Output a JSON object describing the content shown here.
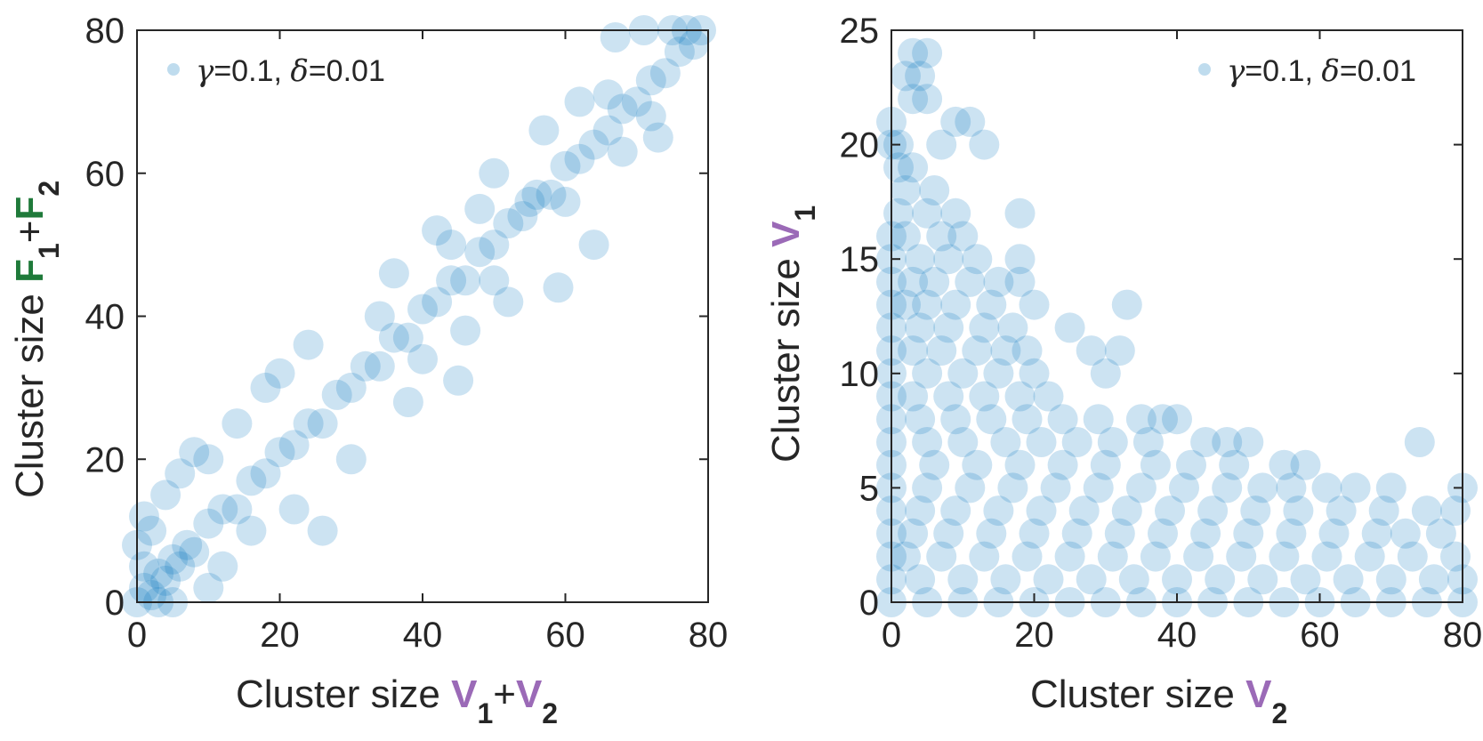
{
  "colors": {
    "marker": "#0072bd",
    "axis": "#262626",
    "v_symbol": "#9b6ab7",
    "f_symbol": "#1f7a3a"
  },
  "chart_data": [
    {
      "type": "scatter",
      "xlabel": {
        "prefix": "Cluster size ",
        "sym1": "V",
        "sub1": "1",
        "plus": "+",
        "sym2": "V",
        "sub2": "2"
      },
      "ylabel": {
        "prefix": "Cluster size ",
        "sym1": "F",
        "sub1": "1",
        "plus": "+",
        "sym2": "F",
        "sub2": "2"
      },
      "xlim": [
        0,
        80
      ],
      "ylim": [
        0,
        80
      ],
      "xticks": [
        0,
        20,
        40,
        60,
        80
      ],
      "yticks": [
        0,
        20,
        40,
        60,
        80
      ],
      "legend": {
        "position": "top-left",
        "gamma_sym": "γ",
        "gamma_val": "=0.1, ",
        "delta_sym": "δ",
        "delta_val": "=0.01"
      },
      "grid": false,
      "marker_alpha": 0.2,
      "series": [
        {
          "name": "γ=0.1, δ=0.01",
          "points": [
            [
              0,
              0
            ],
            [
              1,
              2
            ],
            [
              2,
              1
            ],
            [
              3,
              4
            ],
            [
              4,
              3
            ],
            [
              5,
              6
            ],
            [
              6,
              5
            ],
            [
              7,
              8
            ],
            [
              8,
              7
            ],
            [
              10,
              11
            ],
            [
              12,
              13
            ],
            [
              14,
              13
            ],
            [
              16,
              17
            ],
            [
              18,
              18
            ],
            [
              20,
              21
            ],
            [
              22,
              22
            ],
            [
              24,
              25
            ],
            [
              26,
              25
            ],
            [
              28,
              29
            ],
            [
              30,
              30
            ],
            [
              32,
              33
            ],
            [
              34,
              33
            ],
            [
              36,
              37
            ],
            [
              38,
              37
            ],
            [
              40,
              41
            ],
            [
              42,
              42
            ],
            [
              44,
              45
            ],
            [
              46,
              45
            ],
            [
              48,
              49
            ],
            [
              50,
              50
            ],
            [
              52,
              53
            ],
            [
              54,
              54
            ],
            [
              56,
              57
            ],
            [
              58,
              57
            ],
            [
              60,
              61
            ],
            [
              62,
              62
            ],
            [
              64,
              64
            ],
            [
              66,
              66
            ],
            [
              68,
              69
            ],
            [
              70,
              70
            ],
            [
              72,
              73
            ],
            [
              74,
              74
            ],
            [
              76,
              77
            ],
            [
              78,
              78
            ],
            [
              77,
              80
            ],
            [
              75,
              80
            ],
            [
              79,
              80
            ],
            [
              71,
              80
            ],
            [
              4,
              15
            ],
            [
              6,
              18
            ],
            [
              8,
              21
            ],
            [
              5,
              0
            ],
            [
              10,
              2
            ],
            [
              12,
              5
            ],
            [
              16,
              10
            ],
            [
              20,
              32
            ],
            [
              24,
              36
            ],
            [
              26,
              10
            ],
            [
              36,
              46
            ],
            [
              45,
              31
            ],
            [
              50,
              60
            ],
            [
              52,
              42
            ],
            [
              55,
              56
            ],
            [
              59,
              44
            ],
            [
              57,
              66
            ],
            [
              64,
              50
            ],
            [
              67,
              79
            ],
            [
              66,
              71
            ],
            [
              73,
              65
            ],
            [
              10,
              20
            ],
            [
              14,
              25
            ],
            [
              18,
              30
            ],
            [
              22,
              13
            ],
            [
              30,
              20
            ],
            [
              34,
              40
            ],
            [
              38,
              28
            ],
            [
              42,
              52
            ],
            [
              46,
              38
            ],
            [
              2,
              10
            ],
            [
              1,
              5
            ],
            [
              3,
              0
            ],
            [
              0,
              8
            ],
            [
              1,
              12
            ],
            [
              50,
              45
            ],
            [
              48,
              55
            ],
            [
              40,
              34
            ],
            [
              44,
              50
            ],
            [
              60,
              56
            ],
            [
              62,
              70
            ],
            [
              68,
              63
            ],
            [
              72,
              68
            ]
          ]
        }
      ]
    },
    {
      "type": "scatter",
      "xlabel": {
        "prefix": "Cluster size ",
        "sym1": "V",
        "sub1": "2"
      },
      "ylabel": {
        "prefix": "Cluster size ",
        "sym1": "V",
        "sub1": "1"
      },
      "xlim": [
        0,
        80
      ],
      "ylim": [
        0,
        25
      ],
      "xticks": [
        0,
        20,
        40,
        60,
        80
      ],
      "yticks": [
        0,
        5,
        10,
        15,
        20,
        25
      ],
      "legend": {
        "position": "top-right",
        "gamma_sym": "γ",
        "gamma_val": "=0.1, ",
        "delta_sym": "δ",
        "delta_val": "=0.01"
      },
      "grid": false,
      "marker_alpha": 0.2,
      "series": [
        {
          "name": "γ=0.1, δ=0.01",
          "points": [
            [
              3,
              24
            ],
            [
              5,
              24
            ],
            [
              2,
              23
            ],
            [
              4,
              23
            ],
            [
              3,
              22
            ],
            [
              5,
              22
            ],
            [
              0,
              21
            ],
            [
              9,
              21
            ],
            [
              11,
              21
            ],
            [
              0,
              20
            ],
            [
              1,
              20
            ],
            [
              7,
              20
            ],
            [
              13,
              20
            ],
            [
              1,
              19
            ],
            [
              3,
              19
            ],
            [
              2,
              18
            ],
            [
              6,
              18
            ],
            [
              1,
              17
            ],
            [
              5,
              17
            ],
            [
              9,
              17
            ],
            [
              18,
              17
            ],
            [
              0,
              16
            ],
            [
              2,
              16
            ],
            [
              7,
              16
            ],
            [
              10,
              16
            ],
            [
              0,
              15
            ],
            [
              4,
              15
            ],
            [
              8,
              15
            ],
            [
              12,
              15
            ],
            [
              18,
              15
            ],
            [
              0,
              14
            ],
            [
              3,
              14
            ],
            [
              6,
              14
            ],
            [
              11,
              14
            ],
            [
              15,
              14
            ],
            [
              18,
              14
            ],
            [
              0,
              13
            ],
            [
              2,
              13
            ],
            [
              5,
              13
            ],
            [
              9,
              13
            ],
            [
              14,
              13
            ],
            [
              20,
              13
            ],
            [
              33,
              13
            ],
            [
              0,
              12
            ],
            [
              4,
              12
            ],
            [
              8,
              12
            ],
            [
              13,
              12
            ],
            [
              17,
              12
            ],
            [
              25,
              12
            ],
            [
              0,
              11
            ],
            [
              3,
              11
            ],
            [
              7,
              11
            ],
            [
              12,
              11
            ],
            [
              16,
              11
            ],
            [
              19,
              11
            ],
            [
              28,
              11
            ],
            [
              32,
              11
            ],
            [
              0,
              10
            ],
            [
              5,
              10
            ],
            [
              10,
              10
            ],
            [
              15,
              10
            ],
            [
              20,
              10
            ],
            [
              30,
              10
            ],
            [
              0,
              9
            ],
            [
              3,
              9
            ],
            [
              8,
              9
            ],
            [
              13,
              9
            ],
            [
              18,
              9
            ],
            [
              22,
              9
            ],
            [
              0,
              8
            ],
            [
              4,
              8
            ],
            [
              9,
              8
            ],
            [
              14,
              8
            ],
            [
              19,
              8
            ],
            [
              24,
              8
            ],
            [
              29,
              8
            ],
            [
              35,
              8
            ],
            [
              38,
              8
            ],
            [
              40,
              8
            ],
            [
              0,
              7
            ],
            [
              5,
              7
            ],
            [
              10,
              7
            ],
            [
              16,
              7
            ],
            [
              21,
              7
            ],
            [
              26,
              7
            ],
            [
              31,
              7
            ],
            [
              36,
              7
            ],
            [
              44,
              7
            ],
            [
              47,
              7
            ],
            [
              50,
              7
            ],
            [
              74,
              7
            ],
            [
              0,
              6
            ],
            [
              6,
              6
            ],
            [
              12,
              6
            ],
            [
              18,
              6
            ],
            [
              24,
              6
            ],
            [
              30,
              6
            ],
            [
              37,
              6
            ],
            [
              42,
              6
            ],
            [
              48,
              6
            ],
            [
              55,
              6
            ],
            [
              58,
              6
            ],
            [
              0,
              5
            ],
            [
              5,
              5
            ],
            [
              11,
              5
            ],
            [
              17,
              5
            ],
            [
              23,
              5
            ],
            [
              29,
              5
            ],
            [
              35,
              5
            ],
            [
              41,
              5
            ],
            [
              47,
              5
            ],
            [
              52,
              5
            ],
            [
              56,
              5
            ],
            [
              61,
              5
            ],
            [
              65,
              5
            ],
            [
              70,
              5
            ],
            [
              80,
              5
            ],
            [
              0,
              4
            ],
            [
              4,
              4
            ],
            [
              9,
              4
            ],
            [
              15,
              4
            ],
            [
              21,
              4
            ],
            [
              27,
              4
            ],
            [
              33,
              4
            ],
            [
              39,
              4
            ],
            [
              45,
              4
            ],
            [
              51,
              4
            ],
            [
              57,
              4
            ],
            [
              63,
              4
            ],
            [
              69,
              4
            ],
            [
              75,
              4
            ],
            [
              79,
              4
            ],
            [
              0,
              3
            ],
            [
              3,
              3
            ],
            [
              8,
              3
            ],
            [
              14,
              3
            ],
            [
              20,
              3
            ],
            [
              26,
              3
            ],
            [
              32,
              3
            ],
            [
              38,
              3
            ],
            [
              44,
              3
            ],
            [
              50,
              3
            ],
            [
              56,
              3
            ],
            [
              62,
              3
            ],
            [
              68,
              3
            ],
            [
              72,
              3
            ],
            [
              77,
              3
            ],
            [
              0,
              2
            ],
            [
              2,
              2
            ],
            [
              7,
              2
            ],
            [
              13,
              2
            ],
            [
              19,
              2
            ],
            [
              25,
              2
            ],
            [
              31,
              2
            ],
            [
              37,
              2
            ],
            [
              43,
              2
            ],
            [
              49,
              2
            ],
            [
              55,
              2
            ],
            [
              61,
              2
            ],
            [
              67,
              2
            ],
            [
              73,
              2
            ],
            [
              79,
              2
            ],
            [
              0,
              1
            ],
            [
              4,
              1
            ],
            [
              10,
              1
            ],
            [
              16,
              1
            ],
            [
              22,
              1
            ],
            [
              28,
              1
            ],
            [
              34,
              1
            ],
            [
              40,
              1
            ],
            [
              46,
              1
            ],
            [
              52,
              1
            ],
            [
              58,
              1
            ],
            [
              64,
              1
            ],
            [
              70,
              1
            ],
            [
              76,
              1
            ],
            [
              80,
              1
            ],
            [
              0,
              0
            ],
            [
              5,
              0
            ],
            [
              10,
              0
            ],
            [
              15,
              0
            ],
            [
              20,
              0
            ],
            [
              25,
              0
            ],
            [
              30,
              0
            ],
            [
              35,
              0
            ],
            [
              40,
              0
            ],
            [
              45,
              0
            ],
            [
              50,
              0
            ],
            [
              55,
              0
            ],
            [
              60,
              0
            ],
            [
              65,
              0
            ],
            [
              70,
              0
            ],
            [
              75,
              0
            ],
            [
              80,
              0
            ]
          ]
        }
      ]
    }
  ]
}
